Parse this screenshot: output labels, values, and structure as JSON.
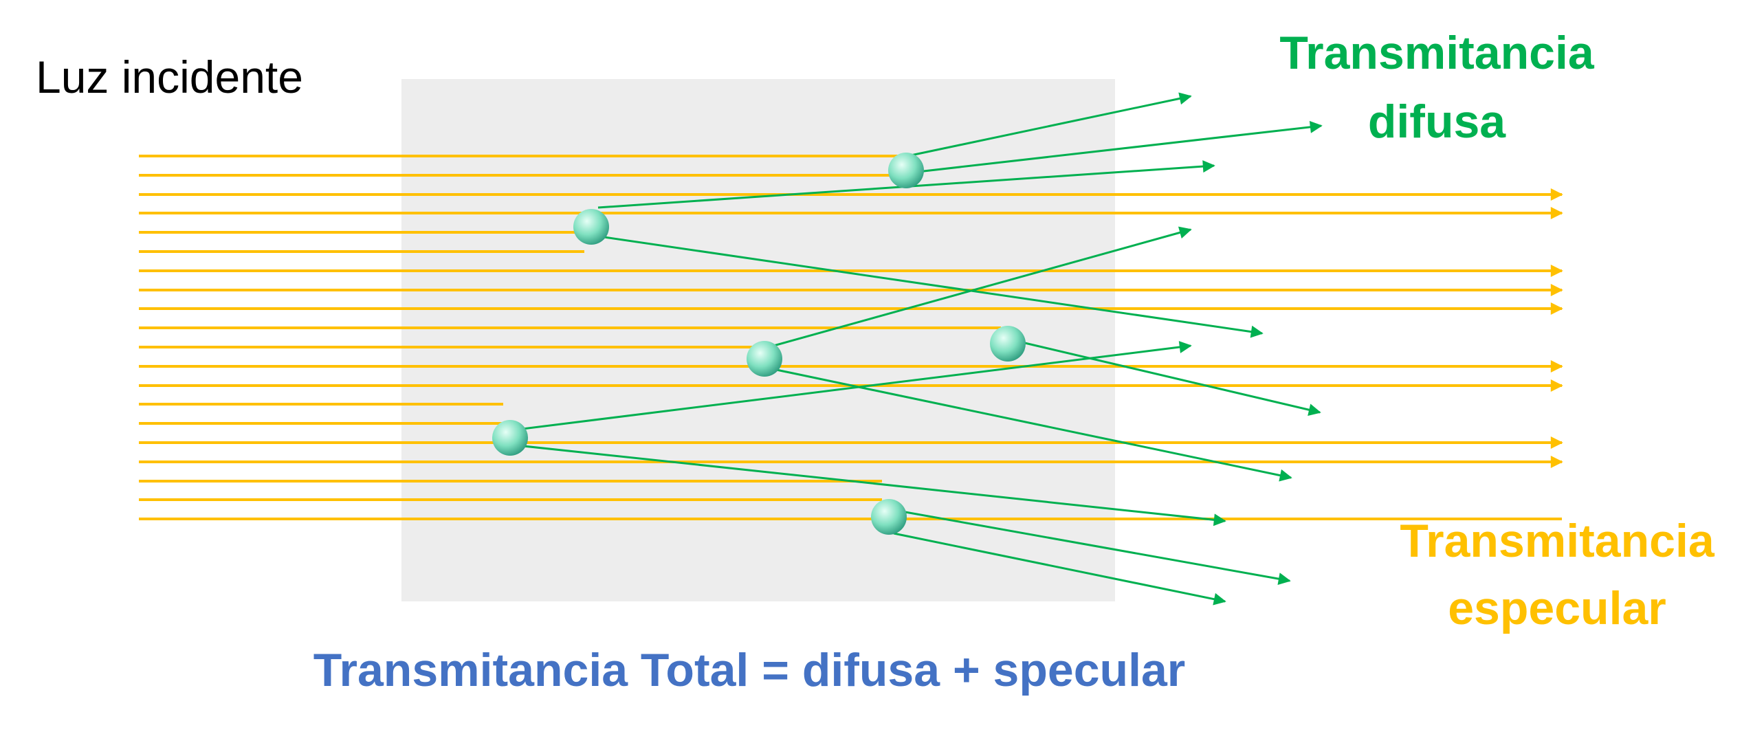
{
  "colors": {
    "specular_ray": "#FFC000",
    "diffuse_ray": "#00B050",
    "sample_box": "#EDEDED",
    "particle_light": "#E6FFF6",
    "particle_mid": "#7FE0C0",
    "particle_dark": "#2E9C7F",
    "total_label": "#4472C4",
    "incident_label": "#000000"
  },
  "labels": {
    "incident": "Luz incidente",
    "diffuse_line1": "Transmitancia",
    "diffuse_line2": "difusa",
    "specular_line1": "Transmitancia",
    "specular_line2": "especular",
    "total": "Transmitancia Total = difusa + specular"
  },
  "incident_ray_count": 20,
  "particle_count": 6,
  "transmitted_specular_ray_count": 10,
  "scattered_diffuse_ray_count": 11
}
